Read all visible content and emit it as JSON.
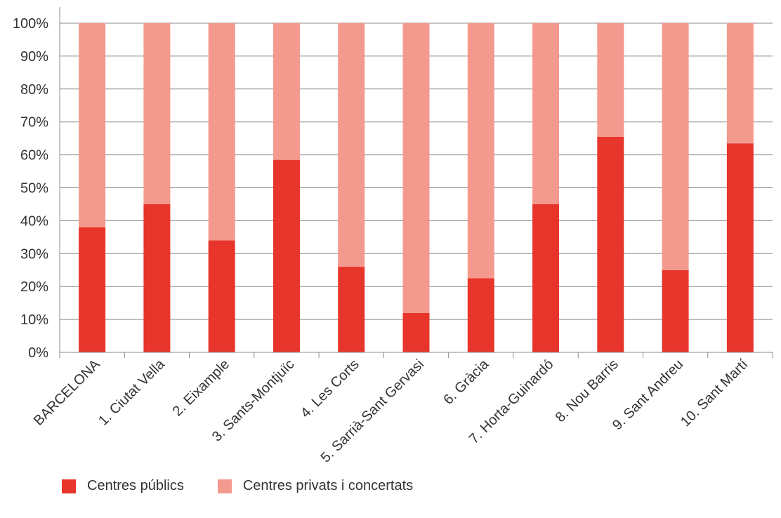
{
  "chart_data": {
    "type": "bar",
    "stacked": true,
    "categories": [
      "BARCELONA",
      "1. Ciutat Vella",
      "2. Eixample",
      "3. Sants-Montjuïc",
      "4. Les Corts",
      "5. Sarrià-Sant Gervasi",
      "6. Gràcia",
      "7. Horta-Guinardó",
      "8. Nou Barris",
      "9. Sant Andreu",
      "10. Sant Martí"
    ],
    "series": [
      {
        "name": "Centres públics",
        "color": "#e8352b",
        "values": [
          38,
          45,
          34,
          58.5,
          26,
          12,
          22.5,
          45,
          65.5,
          25,
          63.5
        ]
      },
      {
        "name": "Centres privats i concertats",
        "color": "#f4998d",
        "values": [
          62,
          55,
          66,
          41.5,
          74,
          88,
          77.5,
          55,
          34.5,
          75,
          36.5
        ]
      }
    ],
    "ylim": [
      0,
      100
    ],
    "yticks": [
      "0%",
      "10%",
      "20%",
      "30%",
      "40%",
      "50%",
      "60%",
      "70%",
      "80%",
      "90%",
      "100%"
    ],
    "grid": true,
    "legend_position": "bottom-left",
    "title": "",
    "xlabel": "",
    "ylabel": ""
  }
}
